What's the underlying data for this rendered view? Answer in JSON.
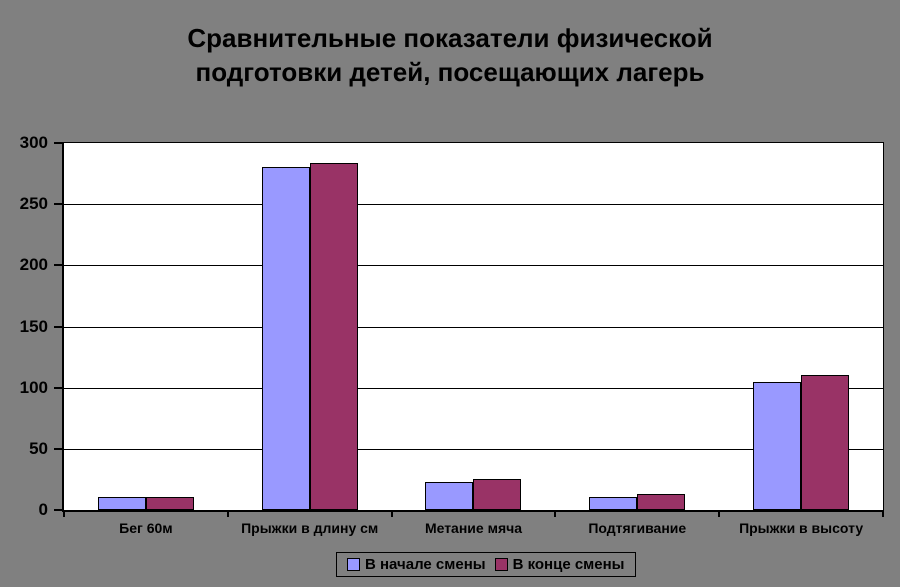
{
  "colors": {
    "background": "#808080",
    "plot_background": "#FFFFFF",
    "series1": "#9999FF",
    "series2": "#993366",
    "gridline": "#000000",
    "text": "#000000"
  },
  "chart_data": {
    "type": "bar",
    "title": "Сравнительные показатели физической подготовки детей, посещающих лагерь",
    "categories": [
      "Бег 60м",
      "Прыжки в длину см",
      "Метание мяча",
      "Подтягивание",
      "Прыжки в высоту"
    ],
    "series": [
      {
        "name": "В начале смены",
        "color": "#9999FF",
        "values": [
          11,
          280,
          23,
          11,
          105
        ]
      },
      {
        "name": "В конце смены",
        "color": "#993366",
        "values": [
          11,
          284,
          25,
          13,
          110
        ]
      }
    ],
    "xlabel": "",
    "ylabel": "",
    "ylim": [
      0,
      300
    ],
    "ytick_step": 50,
    "ytick_labels": [
      "0",
      "50",
      "100",
      "150",
      "200",
      "250",
      "300"
    ],
    "grid": true,
    "legend_position": "bottom-center"
  }
}
